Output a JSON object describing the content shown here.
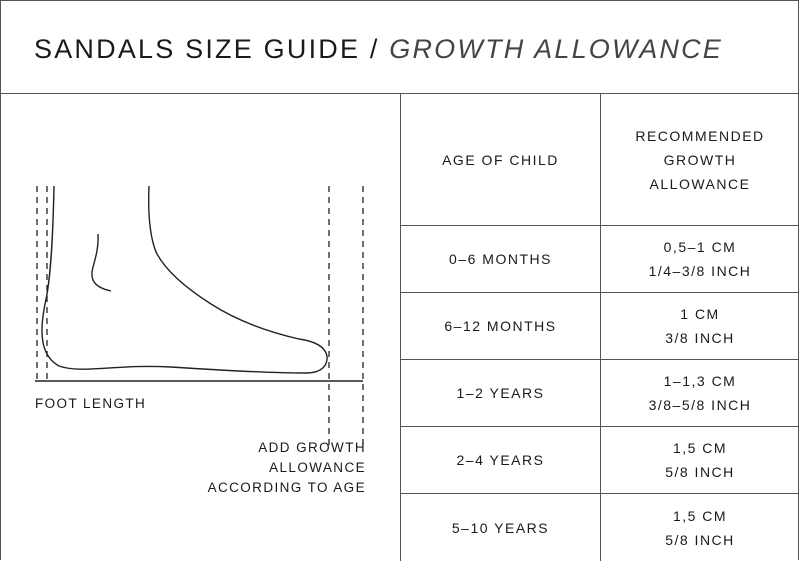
{
  "title": {
    "main": "SANDALS SIZE GUIDE /",
    "sub": "GROWTH ALLOWANCE"
  },
  "diagram": {
    "foot_length_label": "FOOT LENGTH",
    "growth_label_lines": [
      "ADD GROWTH",
      "ALLOWANCE",
      "ACCORDING TO AGE"
    ]
  },
  "table": {
    "headers": {
      "age": "AGE OF CHILD",
      "allowance_lines": [
        "RECOMMENDED",
        "GROWTH",
        "ALLOWANCE"
      ]
    },
    "rows": [
      {
        "age": "0–6 MONTHS",
        "cm": "0,5–1 CM",
        "inch": "1/4–3/8 INCH"
      },
      {
        "age": "6–12 MONTHS",
        "cm": "1 CM",
        "inch": "3/8 INCH"
      },
      {
        "age": "1–2 YEARS",
        "cm": "1–1,3 CM",
        "inch": "3/8–5/8 INCH"
      },
      {
        "age": "2–4 YEARS",
        "cm": "1,5 CM",
        "inch": "5/8 INCH"
      },
      {
        "age": "5–10 YEARS",
        "cm": "1,5 CM",
        "inch": "5/8 INCH"
      }
    ]
  }
}
